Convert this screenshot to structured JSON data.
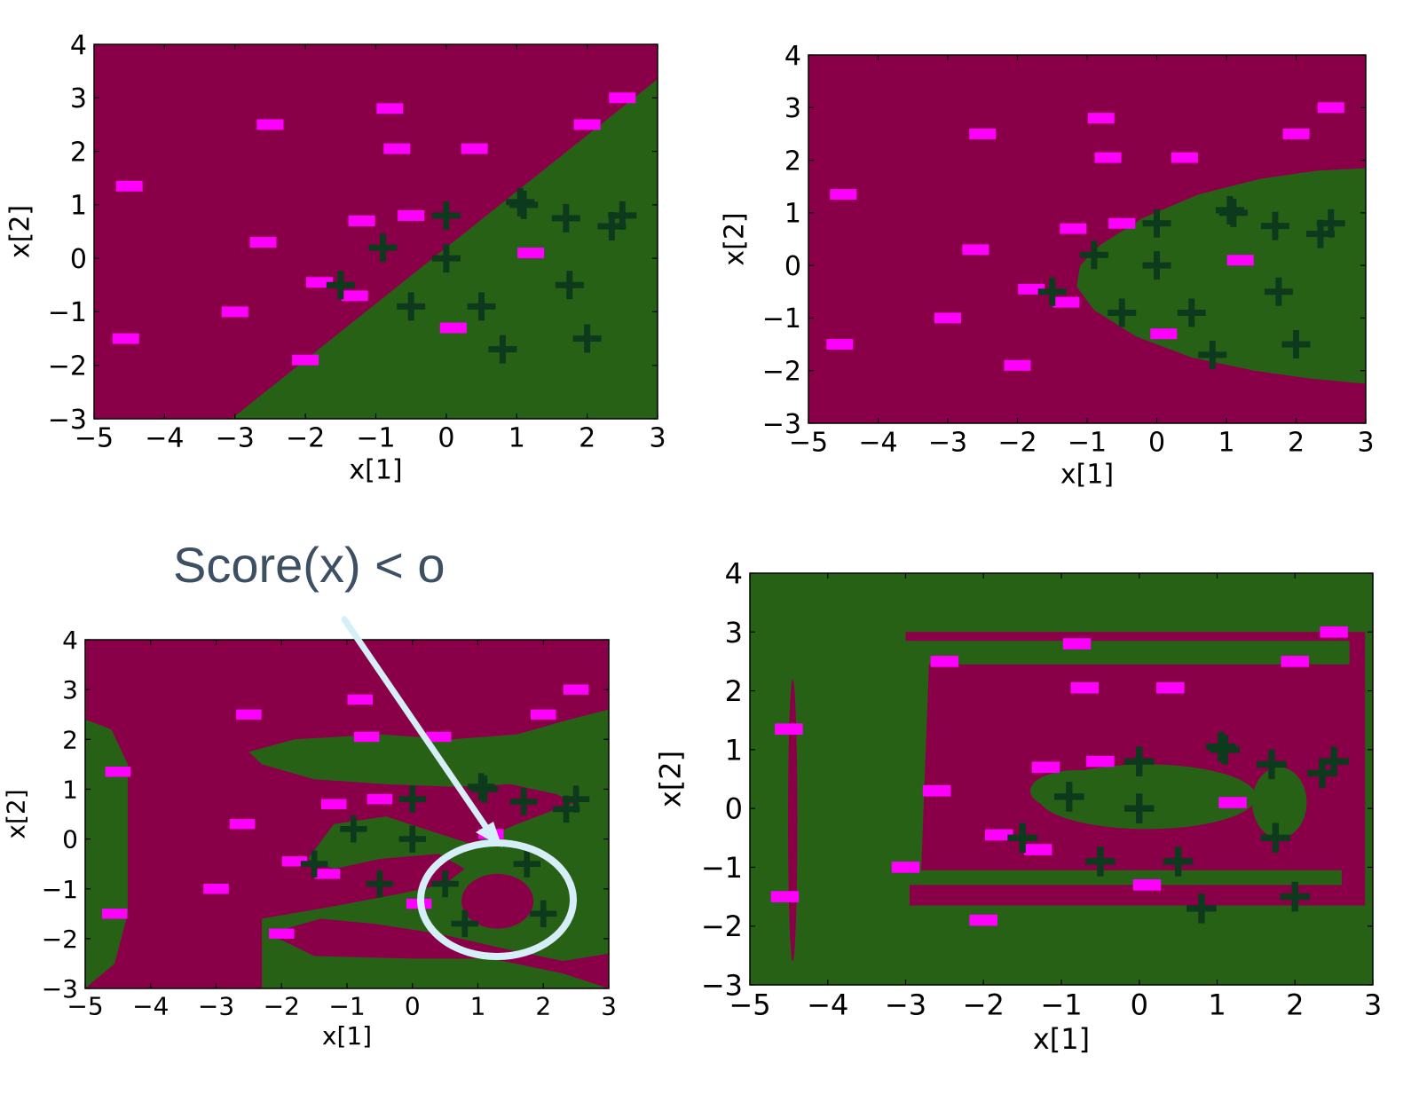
{
  "colors": {
    "negative_region": "#8a0048",
    "positive_region": "#276116",
    "negative_marker": "#ff00ff",
    "positive_marker": "#0d3a1c",
    "callout_text": "#3d4f63",
    "callout_ring": "#d6eef8"
  },
  "annotation": {
    "text": "Score(x) < o"
  },
  "points": {
    "negative": [
      [
        -4.5,
        1.35
      ],
      [
        -4.55,
        -1.5
      ],
      [
        -2.5,
        2.5
      ],
      [
        -2.6,
        0.3
      ],
      [
        -3.0,
        -1.0
      ],
      [
        -2.0,
        -1.9
      ],
      [
        -1.8,
        -0.45
      ],
      [
        -1.3,
        -0.7
      ],
      [
        -1.2,
        0.7
      ],
      [
        -0.8,
        2.8
      ],
      [
        -0.7,
        2.05
      ],
      [
        -0.5,
        0.8
      ],
      [
        0.4,
        2.05
      ],
      [
        0.1,
        -1.3
      ],
      [
        1.2,
        0.1
      ],
      [
        2.0,
        2.5
      ],
      [
        2.5,
        3.0
      ]
    ],
    "positive": [
      [
        -1.5,
        -0.5
      ],
      [
        -0.9,
        0.2
      ],
      [
        -0.5,
        -0.9
      ],
      [
        0.0,
        0.8
      ],
      [
        0.0,
        0.0
      ],
      [
        0.5,
        -0.9
      ],
      [
        0.8,
        -1.7
      ],
      [
        1.05,
        1.05
      ],
      [
        1.1,
        1.0
      ],
      [
        1.7,
        0.75
      ],
      [
        1.75,
        -0.5
      ],
      [
        2.0,
        -1.5
      ],
      [
        2.35,
        0.6
      ],
      [
        2.5,
        0.8
      ]
    ]
  },
  "chart_data": [
    {
      "type": "scatter",
      "region": "linear",
      "xlabel": "x[1]",
      "ylabel": "x[2]",
      "xlim": [
        -5,
        3
      ],
      "ylim": [
        -3,
        4
      ],
      "xticks": [
        "−5",
        "−4",
        "−3",
        "−2",
        "−1",
        "0",
        "1",
        "2",
        "3"
      ],
      "yticks": [
        "−3",
        "−2",
        "−1",
        "0",
        "1",
        "2",
        "3",
        "4"
      ]
    },
    {
      "type": "scatter",
      "region": "quadratic",
      "xlabel": "x[1]",
      "ylabel": "x[2]",
      "xlim": [
        -5,
        3
      ],
      "ylim": [
        -3,
        4
      ],
      "xticks": [
        "−5",
        "−4",
        "−3",
        "−2",
        "−1",
        "0",
        "1",
        "2",
        "3"
      ],
      "yticks": [
        "−3",
        "−2",
        "−1",
        "0",
        "1",
        "2",
        "3",
        "4"
      ]
    },
    {
      "type": "scatter",
      "region": "higher_order",
      "xlabel": "x[1]",
      "ylabel": "x[2]",
      "xlim": [
        -5,
        3
      ],
      "ylim": [
        -3,
        4
      ],
      "xticks": [
        "−5",
        "−4",
        "−3",
        "−2",
        "−1",
        "0",
        "1",
        "2",
        "3"
      ],
      "yticks": [
        "−3",
        "−2",
        "−1",
        "0",
        "1",
        "2",
        "3",
        "4"
      ]
    },
    {
      "type": "scatter",
      "region": "overfit",
      "xlabel": "x[1]",
      "ylabel": "x[2]",
      "xlim": [
        -5,
        3
      ],
      "ylim": [
        -3,
        4
      ],
      "xticks": [
        "−5",
        "−4",
        "−3",
        "−2",
        "−1",
        "0",
        "1",
        "2",
        "3"
      ],
      "yticks": [
        "−3",
        "−2",
        "−1",
        "0",
        "1",
        "2",
        "3",
        "4"
      ]
    }
  ]
}
